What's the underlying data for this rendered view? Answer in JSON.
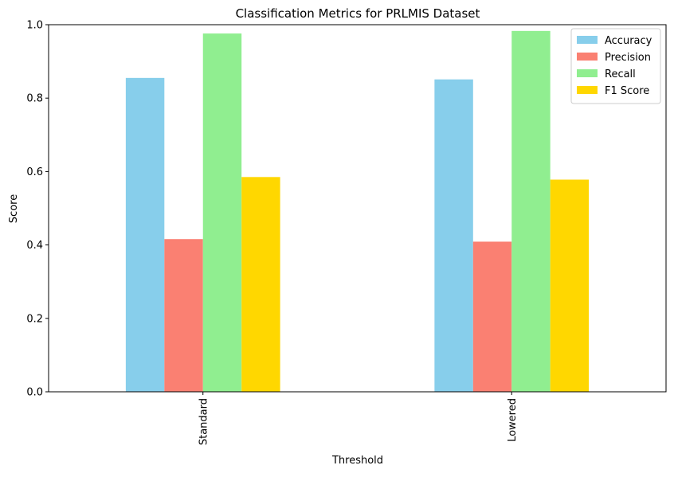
{
  "chart_data": {
    "type": "bar",
    "title": "Classification Metrics for PRLMIS Dataset",
    "xlabel": "Threshold",
    "ylabel": "Score",
    "categories": [
      "Standard",
      "Lowered"
    ],
    "ylim": [
      0,
      1.0
    ],
    "yticks": [
      0.0,
      0.2,
      0.4,
      0.6,
      0.8,
      1.0
    ],
    "ytick_labels": [
      "0.0",
      "0.2",
      "0.4",
      "0.6",
      "0.8",
      "1.0"
    ],
    "grid": false,
    "legend_position": "top-right",
    "series": [
      {
        "name": "Accuracy",
        "color": "#87ceeb",
        "values": [
          0.855,
          0.851
        ]
      },
      {
        "name": "Precision",
        "color": "#fa8072",
        "values": [
          0.416,
          0.409
        ]
      },
      {
        "name": "Recall",
        "color": "#90ee90",
        "values": [
          0.976,
          0.983
        ]
      },
      {
        "name": "F1 Score",
        "color": "#ffd700",
        "values": [
          0.585,
          0.578
        ]
      }
    ]
  }
}
